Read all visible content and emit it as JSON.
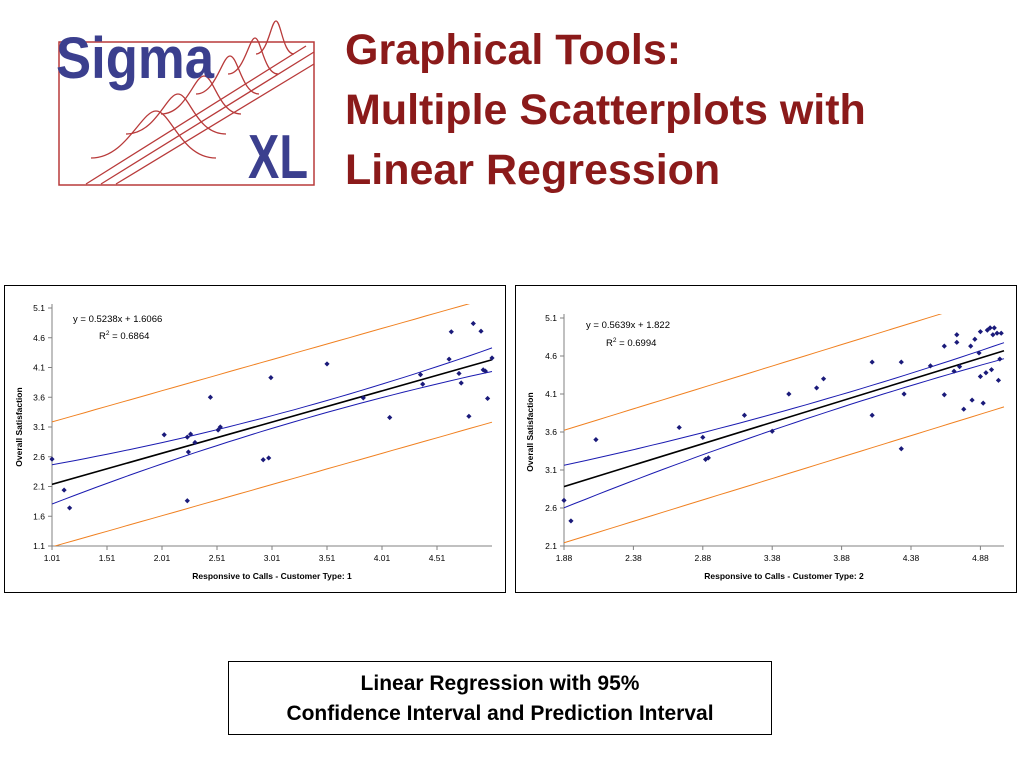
{
  "logo": {
    "brand_text_1": "Sigma",
    "brand_text_2": "XL",
    "brand_color": "#3B3F8E",
    "frame_color": "#B83A3A"
  },
  "title": {
    "line1": "Graphical Tools:",
    "line2": "Multiple Scatterplots with",
    "line3": "Linear Regression",
    "color": "#8B1A1A"
  },
  "caption": {
    "line1": "Linear Regression with 95%",
    "line2": "Confidence Interval and Prediction Interval"
  },
  "colors": {
    "points": "#1A1A7A",
    "fit_line": "#000000",
    "confidence_interval": "#1A1AB0",
    "prediction_interval": "#F08020"
  },
  "chart_data": [
    {
      "type": "scatter",
      "xlabel": "Responsive to Calls - Customer Type: 1",
      "ylabel": "Overall Satisfaction",
      "xlim": [
        1.01,
        5.01
      ],
      "ylim": [
        1.1,
        5.1
      ],
      "x_ticks": [
        "1.01",
        "1.51",
        "2.01",
        "2.51",
        "3.01",
        "3.51",
        "4.01",
        "4.51"
      ],
      "y_ticks": [
        "1.1",
        "1.6",
        "2.1",
        "2.6",
        "3.1",
        "3.6",
        "4.1",
        "4.6",
        "5.1"
      ],
      "equation": "y = 0.5238x + 1.6066",
      "r2_label": "R",
      "r2_sup": "2",
      "r2_value": " = 0.6864",
      "slope": 0.5238,
      "intercept": 1.6066,
      "ci_half_width_center": 0.1,
      "ci_half_width_edge": 0.33,
      "pi_half_width": 1.05,
      "points": [
        [
          1.01,
          2.56
        ],
        [
          1.12,
          2.04
        ],
        [
          1.17,
          1.74
        ],
        [
          2.03,
          2.97
        ],
        [
          2.24,
          1.86
        ],
        [
          2.24,
          2.93
        ],
        [
          2.25,
          2.68
        ],
        [
          2.27,
          2.98
        ],
        [
          2.31,
          2.84
        ],
        [
          2.45,
          3.6
        ],
        [
          2.52,
          3.05
        ],
        [
          2.54,
          3.1
        ],
        [
          2.93,
          2.55
        ],
        [
          2.98,
          2.58
        ],
        [
          3.0,
          3.93
        ],
        [
          3.51,
          4.16
        ],
        [
          3.84,
          3.59
        ],
        [
          4.08,
          3.26
        ],
        [
          4.36,
          3.98
        ],
        [
          4.38,
          3.82
        ],
        [
          4.62,
          4.24
        ],
        [
          4.64,
          4.7
        ],
        [
          4.71,
          4.0
        ],
        [
          4.73,
          3.84
        ],
        [
          4.8,
          3.28
        ],
        [
          4.84,
          4.84
        ],
        [
          4.91,
          4.71
        ],
        [
          4.93,
          4.06
        ],
        [
          4.95,
          4.04
        ],
        [
          4.97,
          3.58
        ],
        [
          5.01,
          4.26
        ]
      ]
    },
    {
      "type": "scatter",
      "xlabel": "Responsive to Calls - Customer Type: 2",
      "ylabel": "Overall Satisfaction",
      "xlim": [
        1.88,
        5.05
      ],
      "ylim": [
        2.1,
        5.1
      ],
      "x_ticks": [
        "1.88",
        "2.38",
        "2.88",
        "3.38",
        "3.88",
        "4.38",
        "4.88"
      ],
      "y_ticks": [
        "2.1",
        "2.6",
        "3.1",
        "3.6",
        "4.1",
        "4.6",
        "5.1"
      ],
      "equation": "y = 0.5639x + 1.822",
      "r2_label": "R",
      "r2_sup": "2",
      "r2_value": " = 0.6994",
      "slope": 0.5639,
      "intercept": 1.822,
      "ci_half_width_center": 0.08,
      "ci_half_width_edge": 0.28,
      "pi_half_width": 0.74,
      "points": [
        [
          1.88,
          2.7
        ],
        [
          1.93,
          2.43
        ],
        [
          2.11,
          3.5
        ],
        [
          2.71,
          3.66
        ],
        [
          2.88,
          3.53
        ],
        [
          2.9,
          3.24
        ],
        [
          2.92,
          3.26
        ],
        [
          3.18,
          3.82
        ],
        [
          3.38,
          3.61
        ],
        [
          3.5,
          4.1
        ],
        [
          3.7,
          4.18
        ],
        [
          3.75,
          4.3
        ],
        [
          4.1,
          4.52
        ],
        [
          4.1,
          3.82
        ],
        [
          4.31,
          4.52
        ],
        [
          4.31,
          3.38
        ],
        [
          4.33,
          4.1
        ],
        [
          4.52,
          4.47
        ],
        [
          4.62,
          4.73
        ],
        [
          4.62,
          4.09
        ],
        [
          4.69,
          4.4
        ],
        [
          4.71,
          4.88
        ],
        [
          4.71,
          4.78
        ],
        [
          4.73,
          4.46
        ],
        [
          4.76,
          3.9
        ],
        [
          4.81,
          4.73
        ],
        [
          4.82,
          4.02
        ],
        [
          4.84,
          4.82
        ],
        [
          4.87,
          4.64
        ],
        [
          4.88,
          4.92
        ],
        [
          4.88,
          4.33
        ],
        [
          4.9,
          3.98
        ],
        [
          4.92,
          4.38
        ],
        [
          4.93,
          4.94
        ],
        [
          4.95,
          4.97
        ],
        [
          4.96,
          4.42
        ],
        [
          4.97,
          4.88
        ],
        [
          4.98,
          4.97
        ],
        [
          5.0,
          4.9
        ],
        [
          5.01,
          4.28
        ],
        [
          5.02,
          4.56
        ],
        [
          5.03,
          4.9
        ]
      ]
    }
  ]
}
